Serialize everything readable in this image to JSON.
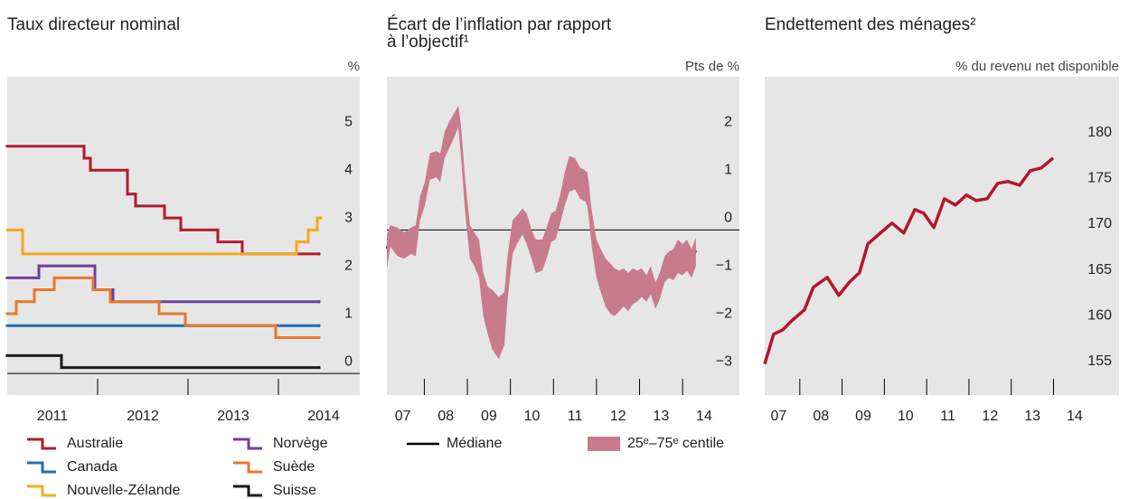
{
  "chart_data": [
    {
      "type": "line",
      "step": "post",
      "title": [
        "Taux directeur nominal"
      ],
      "y_unit": "%",
      "xlim": [
        2011.0,
        2014.9
      ],
      "ylim": [
        -0.45,
        6.2
      ],
      "yticks": [
        0,
        1,
        2,
        3,
        4,
        5
      ],
      "zero_line": true,
      "grid": false,
      "xticks": [
        {
          "value": 2011.5,
          "label": "2011"
        },
        {
          "value": 2012.5,
          "label": "2012"
        },
        {
          "value": 2013.5,
          "label": "2013"
        },
        {
          "value": 2014.5,
          "label": "2014"
        }
      ],
      "xmajorticks": [
        2012,
        2013,
        2014
      ],
      "legend_columns": 2,
      "series": [
        {
          "name": "Australie",
          "color": "#b01c2e",
          "x": [
            2011.0,
            2011.85,
            2011.92,
            2012.33,
            2012.42,
            2012.74,
            2012.92,
            2013.33,
            2013.6,
            2014.45
          ],
          "values": [
            4.75,
            4.5,
            4.25,
            3.75,
            3.5,
            3.25,
            3.0,
            2.75,
            2.5,
            2.5
          ]
        },
        {
          "name": "Canada",
          "color": "#1c6fb5",
          "x": [
            2011.0,
            2014.45
          ],
          "values": [
            1.0,
            1.0
          ]
        },
        {
          "name": "Nouvelle-Zélande",
          "color": "#f4a81d",
          "x": [
            2011.0,
            2011.17,
            2014.2,
            2014.33,
            2014.43,
            2014.47
          ],
          "values": [
            3.0,
            2.5,
            2.75,
            3.0,
            3.25,
            3.25
          ]
        },
        {
          "name": "Norvège",
          "color": "#6b3fa0",
          "x": [
            2011.0,
            2011.35,
            2011.97,
            2012.17,
            2014.45
          ],
          "values": [
            2.0,
            2.25,
            1.75,
            1.5,
            1.5
          ]
        },
        {
          "name": "Suède",
          "color": "#e8782a",
          "x": [
            2011.0,
            2011.1,
            2011.3,
            2011.52,
            2011.95,
            2012.14,
            2012.68,
            2012.97,
            2013.97,
            2014.45
          ],
          "values": [
            1.25,
            1.5,
            1.75,
            2.0,
            1.75,
            1.5,
            1.25,
            1.0,
            0.75,
            0.75
          ]
        },
        {
          "name": "Suisse",
          "color": "#1a1a1a",
          "x": [
            2011.0,
            2011.6,
            2014.45
          ],
          "values": [
            0.375,
            0.125,
            0.125
          ]
        }
      ]
    },
    {
      "type": "line",
      "title": [
        "Écart de l’inflation par rapport",
        "à l’objectif¹"
      ],
      "y_unit": "Pts de %",
      "xlim": [
        2007.13,
        2015.32
      ],
      "ylim": [
        -3.45,
        3.2
      ],
      "zero_line": true,
      "grid": false,
      "yticks": [
        {
          "value": -3,
          "label": "−3"
        },
        {
          "value": -2,
          "label": "−2"
        },
        {
          "value": -1,
          "label": "−1"
        },
        0,
        1,
        2
      ],
      "xticks": [
        {
          "value": 2007.5,
          "label": "07"
        },
        {
          "value": 2008.5,
          "label": "08"
        },
        {
          "value": 2009.5,
          "label": "09"
        },
        {
          "value": 2010.5,
          "label": "10"
        },
        {
          "value": 2011.5,
          "label": "11"
        },
        {
          "value": 2012.5,
          "label": "12"
        },
        {
          "value": 2013.5,
          "label": "13"
        },
        {
          "value": 2014.5,
          "label": "14"
        }
      ],
      "xmajorticks": [
        2008,
        2009,
        2010,
        2011,
        2012,
        2013,
        2014
      ],
      "legend_columns": 1,
      "x": [
        2007.13,
        2007.21,
        2007.38,
        2007.53,
        2007.69,
        2007.8,
        2007.9,
        2008.01,
        2008.13,
        2008.28,
        2008.37,
        2008.47,
        2008.6,
        2008.7,
        2008.79,
        2008.85,
        2008.95,
        2009.06,
        2009.16,
        2009.27,
        2009.37,
        2009.48,
        2009.58,
        2009.73,
        2009.86,
        2009.94,
        2010.05,
        2010.15,
        2010.28,
        2010.38,
        2010.49,
        2010.59,
        2010.74,
        2010.84,
        2010.95,
        2011.05,
        2011.16,
        2011.26,
        2011.37,
        2011.5,
        2011.62,
        2011.73,
        2011.79,
        2011.89,
        2012.0,
        2012.1,
        2012.21,
        2012.32,
        2012.42,
        2012.53,
        2012.63,
        2012.74,
        2012.84,
        2012.95,
        2013.05,
        2013.16,
        2013.26,
        2013.37,
        2013.47,
        2013.58,
        2013.68,
        2013.79,
        2013.89,
        2014.0,
        2014.1,
        2014.21,
        2014.31
      ],
      "series": [
        {
          "name": "Médiane",
          "color": "#000000",
          "values": [
            -0.39,
            -0.02,
            -0.21,
            -0.34,
            -0.21,
            -0.3,
            0.45,
            0.73,
            1.29,
            1.39,
            1.29,
            1.8,
            1.99,
            2.23,
            2.42,
            1.86,
            0.73,
            -0.26,
            -0.39,
            -0.58,
            -1.33,
            -1.61,
            -1.61,
            -1.8,
            -1.8,
            -0.86,
            -0.08,
            0.02,
            0.23,
            0.08,
            -0.3,
            -0.54,
            -0.54,
            -0.3,
            0.08,
            0.11,
            0.45,
            0.83,
            1.16,
            1.2,
            1.05,
            1.01,
            1.05,
            0.08,
            -0.58,
            -0.86,
            -1.09,
            -1.14,
            -1.14,
            -1.24,
            -1.2,
            -1.28,
            -1.14,
            -1.2,
            -1.09,
            -1.24,
            -1.05,
            -1.39,
            -1.2,
            -0.83,
            -0.71,
            -0.75,
            -0.58,
            -0.66,
            -0.49,
            -0.71,
            -0.43
          ]
        },
        {
          "name": "25ᵉ–75ᵉ centile",
          "color": "#c97b8e",
          "lower": [
            -0.8,
            -0.35,
            -0.55,
            -0.6,
            -0.5,
            -0.55,
            0.2,
            0.5,
            1.05,
            1.1,
            1.0,
            1.5,
            1.75,
            1.95,
            2.15,
            1.55,
            0.35,
            -0.6,
            -0.75,
            -1.0,
            -1.8,
            -2.2,
            -2.5,
            -2.7,
            -2.4,
            -1.4,
            -0.5,
            -0.3,
            -0.1,
            -0.3,
            -0.6,
            -0.9,
            -0.85,
            -0.6,
            -0.25,
            -0.2,
            0.15,
            0.5,
            0.8,
            0.85,
            0.65,
            0.6,
            0.5,
            -0.35,
            -1.0,
            -1.3,
            -1.6,
            -1.75,
            -1.8,
            -1.7,
            -1.6,
            -1.7,
            -1.55,
            -1.5,
            -1.4,
            -1.5,
            -1.35,
            -1.65,
            -1.45,
            -1.1,
            -1.0,
            -1.05,
            -0.9,
            -0.95,
            -0.85,
            -1.0,
            -0.75
          ],
          "upper": [
            -0.1,
            0.1,
            0.05,
            -0.05,
            0.05,
            0.1,
            0.7,
            1.0,
            1.6,
            1.65,
            1.6,
            2.05,
            2.3,
            2.45,
            2.6,
            2.2,
            1.05,
            0.1,
            -0.05,
            -0.2,
            -0.9,
            -1.2,
            -1.25,
            -1.4,
            -1.3,
            -0.5,
            0.2,
            0.3,
            0.45,
            0.35,
            0.0,
            -0.2,
            -0.2,
            0.05,
            0.35,
            0.4,
            0.75,
            1.2,
            1.55,
            1.5,
            1.3,
            1.25,
            1.2,
            0.4,
            -0.2,
            -0.4,
            -0.6,
            -0.7,
            -0.8,
            -0.85,
            -0.8,
            -0.9,
            -0.8,
            -0.85,
            -0.8,
            -0.95,
            -0.75,
            -1.1,
            -0.9,
            -0.55,
            -0.45,
            -0.4,
            -0.2,
            -0.3,
            -0.2,
            -0.4,
            -0.15
          ]
        }
      ]
    },
    {
      "type": "line",
      "title": [
        "Endettement des ménages²"
      ],
      "y_unit": "% du revenu net disponible",
      "xlim": [
        2007.17,
        2015.55
      ],
      "ylim": [
        152.6,
        187.4
      ],
      "yticks": [
        155,
        160,
        165,
        170,
        175,
        180
      ],
      "zero_line": false,
      "grid": false,
      "xticks": [
        {
          "value": 2007.5,
          "label": "07"
        },
        {
          "value": 2008.5,
          "label": "08"
        },
        {
          "value": 2009.5,
          "label": "09"
        },
        {
          "value": 2010.5,
          "label": "10"
        },
        {
          "value": 2011.5,
          "label": "11"
        },
        {
          "value": 2012.5,
          "label": "12"
        },
        {
          "value": 2013.5,
          "label": "13"
        },
        {
          "value": 2014.5,
          "label": "14"
        }
      ],
      "xmajorticks": [
        2008,
        2009,
        2010,
        2011,
        2012,
        2013,
        2014
      ],
      "x": [
        2007.17,
        2007.38,
        2007.6,
        2007.81,
        2008.11,
        2008.32,
        2008.65,
        2008.92,
        2009.18,
        2009.41,
        2009.61,
        2009.93,
        2010.18,
        2010.46,
        2010.72,
        2010.93,
        2011.17,
        2011.42,
        2011.68,
        2011.94,
        2012.17,
        2012.43,
        2012.68,
        2012.92,
        2013.2,
        2013.45,
        2013.71,
        2013.99
      ],
      "series": [
        {
          "color": "#b5162b",
          "values": [
            156.0,
            159.25,
            159.74,
            160.73,
            161.92,
            164.39,
            165.47,
            163.5,
            164.98,
            165.97,
            169.13,
            170.42,
            171.4,
            170.32,
            172.89,
            172.49,
            170.91,
            174.07,
            173.38,
            174.47,
            173.87,
            174.07,
            175.75,
            175.95,
            175.55,
            177.13,
            177.43,
            178.52
          ]
        }
      ]
    }
  ]
}
